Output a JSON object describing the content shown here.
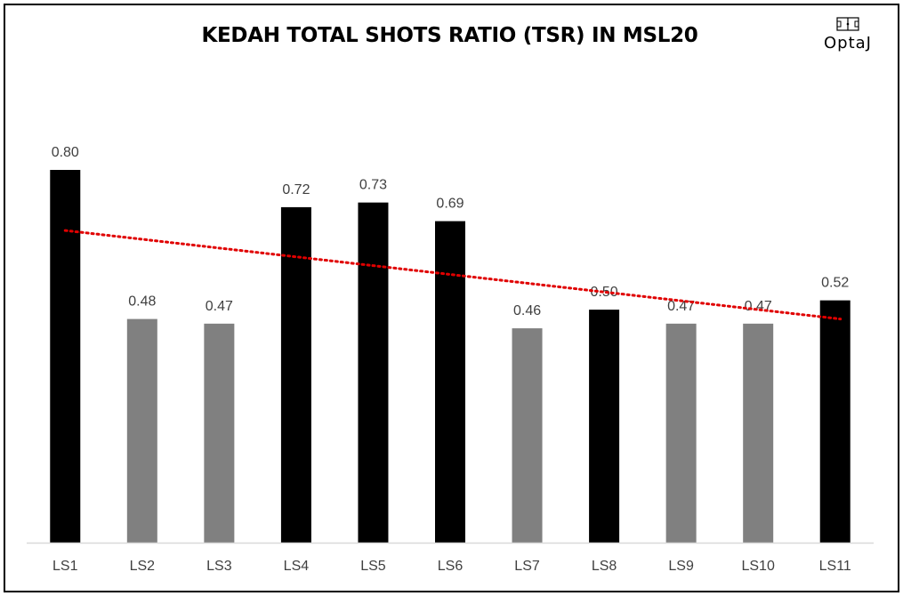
{
  "logo": {
    "text": "OptaJ",
    "icon": "pitch-icon"
  },
  "chart_data": {
    "type": "bar",
    "title": "KEDAH TOTAL SHOTS RATIO (TSR) IN MSL20",
    "xlabel": "",
    "ylabel": "",
    "ylim": [
      0,
      0.8
    ],
    "grid": false,
    "legend": "none",
    "categories": [
      "LS1",
      "LS2",
      "LS3",
      "LS4",
      "LS5",
      "LS6",
      "LS7",
      "LS8",
      "LS9",
      "LS10",
      "LS11"
    ],
    "values": [
      0.8,
      0.48,
      0.47,
      0.72,
      0.73,
      0.69,
      0.46,
      0.5,
      0.47,
      0.47,
      0.52
    ],
    "data_labels": [
      "0.80",
      "0.48",
      "0.47",
      "0.72",
      "0.73",
      "0.69",
      "0.46",
      "0.50",
      "0.47",
      "0.47",
      "0.52"
    ],
    "bar_colors": [
      "#000000",
      "#808080",
      "#808080",
      "#000000",
      "#000000",
      "#000000",
      "#808080",
      "#000000",
      "#808080",
      "#808080",
      "#000000"
    ],
    "trendline": {
      "type": "linear",
      "style": "dotted",
      "color": "#e00000",
      "start_value": 0.67,
      "end_value": 0.48
    },
    "axis_color": "#d9d9d9"
  }
}
